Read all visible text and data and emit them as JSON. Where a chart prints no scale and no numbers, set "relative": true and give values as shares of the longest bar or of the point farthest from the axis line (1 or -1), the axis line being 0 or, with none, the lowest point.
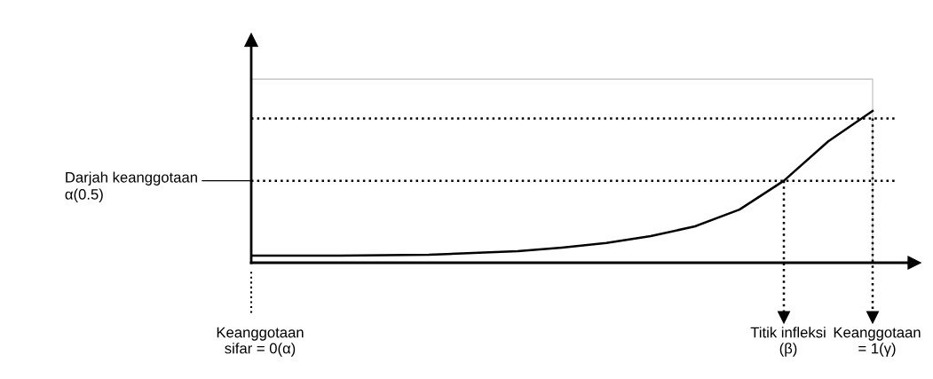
{
  "chart_data": {
    "type": "line",
    "relative": true,
    "marker": "none",
    "line_style": "solid",
    "categories": [
      null,
      null,
      null,
      null,
      null,
      null,
      null,
      null,
      null,
      null,
      null,
      null,
      null,
      null,
      null
    ],
    "series": [
      {
        "color": "#000000",
        "values": [
          0.047,
          0.047,
          0.047,
          0.05,
          0.053,
          0.064,
          0.076,
          0.1,
          0.13,
          0.175,
          0.24,
          0.35,
          0.54,
          0.8,
          1.0
        ]
      }
    ],
    "ref_lines": [
      {
        "axis": "y",
        "value": 0.54,
        "label": "Darjah keanggotaan\nα(0.5)",
        "line_style": "dotted",
        "color": "#000000"
      },
      {
        "axis": "y",
        "value": 0.95,
        "line_style": "dotted",
        "color": "#000000"
      }
    ],
    "annotations": [
      "Keanggotaan\nsifar = 0(α)",
      "Titik infleksi\n(β)",
      "Keanggotaan\n= 1(γ)"
    ]
  }
}
